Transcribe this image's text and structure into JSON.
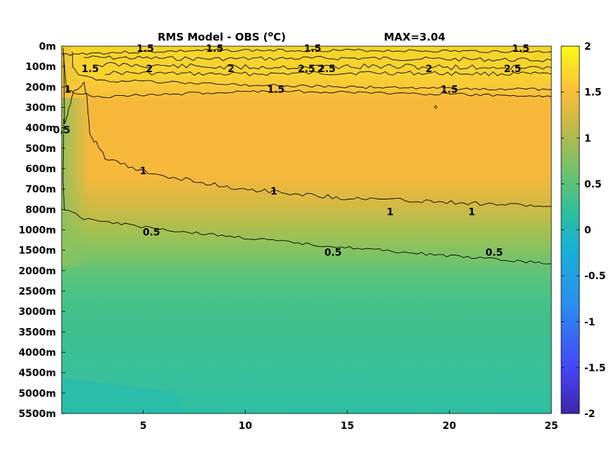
{
  "chart_data": {
    "type": "heatmap",
    "title": "RMS Model - OBS (",
    "title_unit_sup": "o",
    "title_unit_tail": "C)",
    "max_label": "MAX=3.04",
    "x_ticks": [
      5,
      10,
      15,
      20,
      25
    ],
    "xlim": [
      1,
      25
    ],
    "y_ticks": [
      "0m",
      "100m",
      "200m",
      "300m",
      "400m",
      "500m",
      "600m",
      "700m",
      "800m",
      "1000m",
      "1500m",
      "2000m",
      "2500m",
      "3000m",
      "3500m",
      "4000m",
      "4500m",
      "5000m",
      "5500m"
    ],
    "colorbar": {
      "ticks": [
        "2",
        "1.5",
        "1",
        "0.5",
        "0",
        "-0.5",
        "-1",
        "-1.5",
        "-2"
      ],
      "range": [
        -2,
        2
      ],
      "colormap": [
        "#3e26a8",
        "#4743f8",
        "#2a8ff0",
        "#1ab3d3",
        "#2ebf9b",
        "#70c36b",
        "#c3b848",
        "#fcbf3a",
        "#f9fb15"
      ]
    },
    "contour_levels": [
      0.5,
      1,
      1.5,
      2,
      2.5
    ],
    "contour_labels": [
      {
        "text": "1.5",
        "x": 5.1,
        "depth": "0m"
      },
      {
        "text": "1.5",
        "x": 8.5,
        "depth": "0m"
      },
      {
        "text": "2",
        "x": 5.3,
        "depth": "100m"
      },
      {
        "text": "1.5",
        "x": 2.4,
        "depth": "100m"
      },
      {
        "text": "1.5",
        "x": 13.3,
        "depth": "0m"
      },
      {
        "text": "2.5",
        "x": 13.0,
        "depth": "100m"
      },
      {
        "text": "2",
        "x": 13.7,
        "depth": "100m"
      },
      {
        "text": "2.5",
        "x": 14.0,
        "depth": "100m"
      },
      {
        "text": "1.5",
        "x": 23.5,
        "depth": "0m"
      },
      {
        "text": "2.5",
        "x": 23.1,
        "depth": "100m"
      },
      {
        "text": "2",
        "x": 9.3,
        "depth": "100m"
      },
      {
        "text": "2",
        "x": 19.0,
        "depth": "100m"
      },
      {
        "text": "1.5",
        "x": 11.5,
        "depth": "200m"
      },
      {
        "text": "1.5",
        "x": 20.0,
        "depth": "200m"
      },
      {
        "text": "1",
        "x": 1.3,
        "depth": "200m"
      },
      {
        "text": "0.5",
        "x": 1.0,
        "depth": "400m"
      },
      {
        "text": "1",
        "x": 5.0,
        "depth": "600m"
      },
      {
        "text": "1",
        "x": 11.4,
        "depth": "700m"
      },
      {
        "text": "1",
        "x": 17.1,
        "depth": "800m"
      },
      {
        "text": "1",
        "x": 21.1,
        "depth": "800m"
      },
      {
        "text": "0.5",
        "x": 5.4,
        "depth": "1000m"
      },
      {
        "text": "0.5",
        "x": 14.3,
        "depth": "1500m"
      },
      {
        "text": "0.5",
        "x": 22.2,
        "depth": "1500m"
      }
    ]
  }
}
